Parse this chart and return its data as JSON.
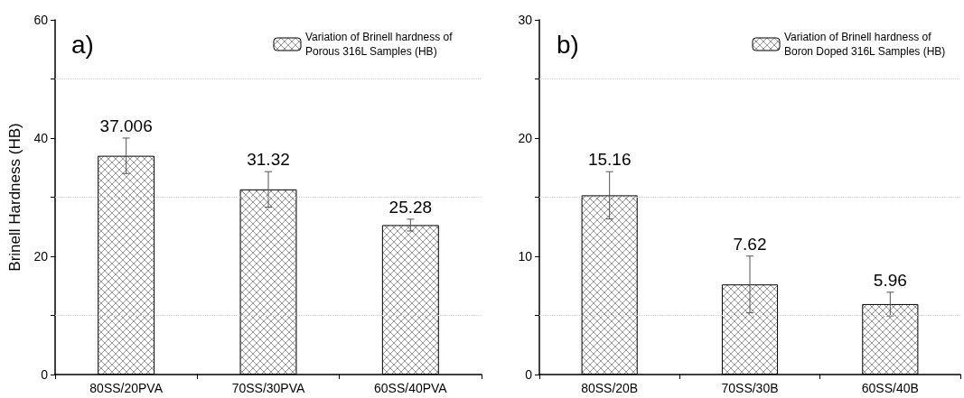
{
  "chart_data": [
    {
      "type": "bar",
      "title": "a)",
      "ylabel": "Brinell Hardness (HB)",
      "categories": [
        "80SS/20PVA",
        "70SS/30PVA",
        "60SS/40PVA"
      ],
      "series": [
        {
          "name": "Variation of Brinell hardness of Porous 316L Samples (HB)",
          "color": "#000000",
          "values": [
            37.006,
            31.32,
            25.28
          ],
          "errors": [
            3,
            3,
            1
          ]
        }
      ],
      "ylim": [
        0,
        60
      ],
      "yticks": [
        0,
        {
          "value": 10,
          "label": null
        },
        20,
        {
          "value": 30,
          "label": null
        },
        40,
        {
          "value": 50,
          "label": null
        },
        60
      ],
      "grid": "y",
      "legend": "top right",
      "data_labels": true
    },
    {
      "type": "bar",
      "title": "b)",
      "categories": [
        "80SS/20B",
        "70SS/30B",
        "60SS/40B"
      ],
      "series": [
        {
          "name": "Variation of Brinell hardness of Boron Doped 316L Samples (HB)",
          "color": "#000000",
          "values": [
            15.16,
            7.62,
            5.96
          ],
          "errors": [
            2,
            2.4,
            1
          ]
        }
      ],
      "ylim": [
        0,
        30
      ],
      "yticks": [
        0,
        {
          "value": 5,
          "label": null
        },
        10,
        {
          "value": 15,
          "label": null
        },
        20,
        {
          "value": 25,
          "label": null
        },
        30
      ],
      "grid": "y",
      "legend": "top right",
      "data_labels": true
    }
  ]
}
